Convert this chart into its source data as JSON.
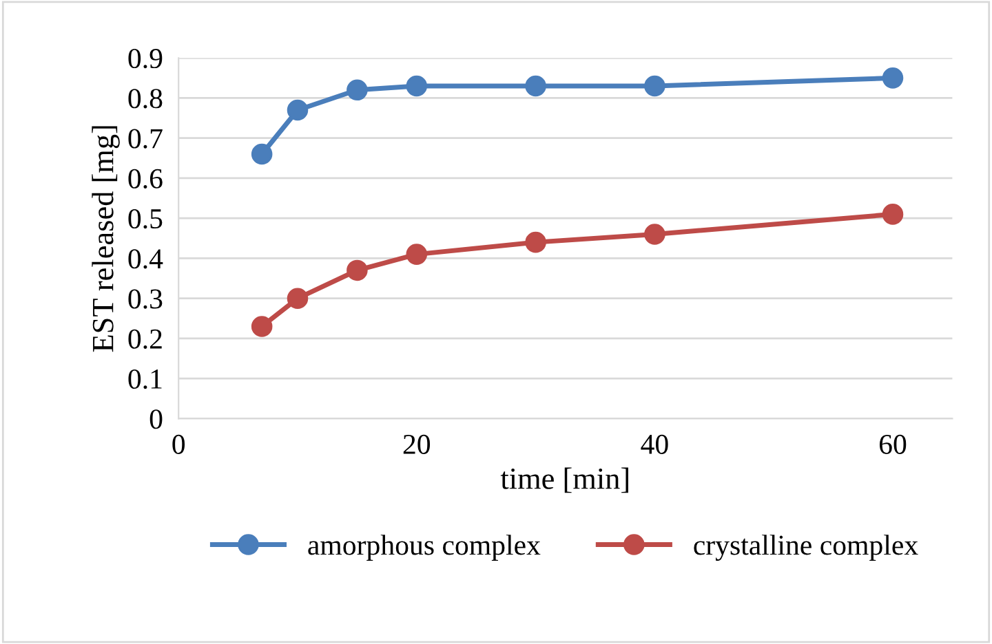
{
  "chart_data": {
    "type": "line",
    "xlabel": "time [min]",
    "ylabel": "EST released [mg]",
    "x": [
      7,
      10,
      15,
      20,
      30,
      40,
      60
    ],
    "series": [
      {
        "name": "amorphous complex",
        "color": "#4a7ebb",
        "values": [
          0.66,
          0.77,
          0.82,
          0.83,
          0.83,
          0.83,
          0.85
        ]
      },
      {
        "name": "crystalline complex",
        "color": "#be4b48",
        "values": [
          0.23,
          0.3,
          0.37,
          0.41,
          0.44,
          0.46,
          0.51
        ]
      }
    ],
    "xlim": [
      0,
      65
    ],
    "xticks": [
      0,
      20,
      40,
      60
    ],
    "ylim": [
      0,
      0.9
    ],
    "yticks": [
      0,
      0.1,
      0.2,
      0.3,
      0.4,
      0.5,
      0.6,
      0.7,
      0.8,
      0.9
    ],
    "grid": "y",
    "legend": "bottom",
    "marker": "circle",
    "line_style": "solid"
  }
}
